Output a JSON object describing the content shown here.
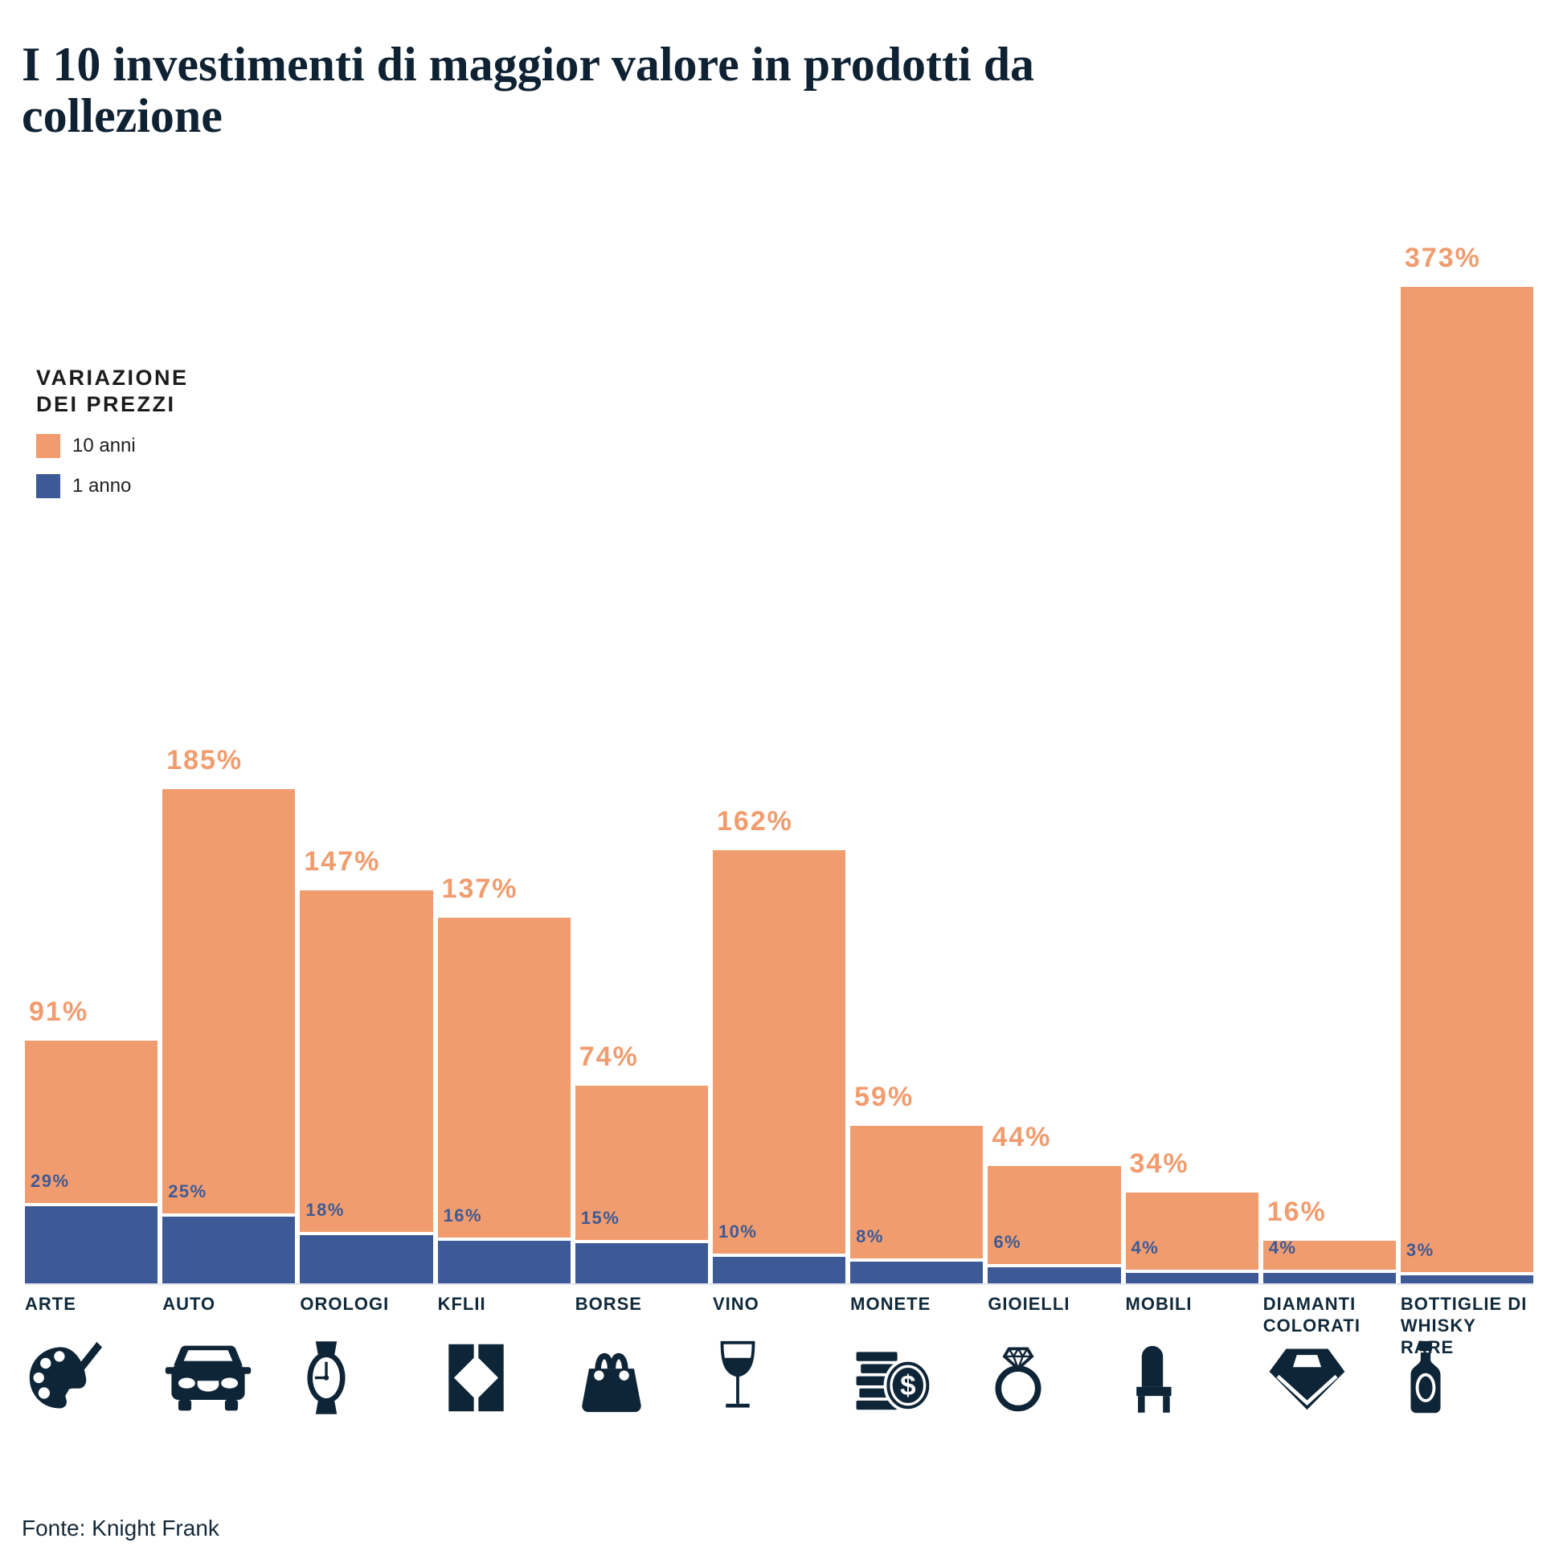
{
  "title": {
    "line1": "I 10 investimenti di maggior valore in prodotti da",
    "line2": "collezione"
  },
  "legend": {
    "title_line1": "VARIAZIONE",
    "title_line2": "DEI PREZZI",
    "items": [
      {
        "label": "10 anni",
        "color": "#F19C6E"
      },
      {
        "label": "1 anno",
        "color": "#3D5A97"
      }
    ]
  },
  "chart_data": {
    "type": "bar",
    "title": "I 10 investimenti di maggior valore in prodotti da collezione",
    "categories": [
      "ARTE",
      "AUTO",
      "OROLOGI",
      "KFLII",
      "BORSE",
      "VINO",
      "MONETE",
      "GIOIELLI",
      "MOBILI",
      "DIAMANTI\nCOLORATI",
      "BOTTIGLIE DI\nWHISKY RARE"
    ],
    "series": [
      {
        "name": "10 anni",
        "color": "#F19C6E",
        "values": [
          91,
          185,
          147,
          137,
          74,
          162,
          59,
          44,
          34,
          16,
          373
        ],
        "labels": [
          "91%",
          "185%",
          "147%",
          "137%",
          "74%",
          "162%",
          "59%",
          "44%",
          "34%",
          "16%",
          "373%"
        ]
      },
      {
        "name": "1 anno",
        "color": "#3D5A97",
        "values": [
          29,
          25,
          18,
          16,
          15,
          10,
          8,
          6,
          4,
          4,
          3
        ],
        "labels": [
          "29%",
          "25%",
          "18%",
          "16%",
          "15%",
          "10%",
          "8%",
          "6%",
          "4%",
          "4%",
          "3%"
        ]
      }
    ],
    "icons": [
      "palette-icon",
      "car-icon",
      "wristwatch-icon",
      "kflii-logo-icon",
      "handbag-icon",
      "wine-glass-icon",
      "coins-icon",
      "ring-icon",
      "chair-icon",
      "diamond-icon",
      "whisky-bottle-icon"
    ],
    "ylim": [
      0,
      373
    ],
    "grid": false,
    "legend_position": "upper-left",
    "ylabel": "",
    "xlabel": ""
  },
  "footer": {
    "source": "Fonte: Knight Frank"
  },
  "colors": {
    "orange": "#F19C6E",
    "blue": "#3D5A97",
    "navy": "#0E2537"
  }
}
